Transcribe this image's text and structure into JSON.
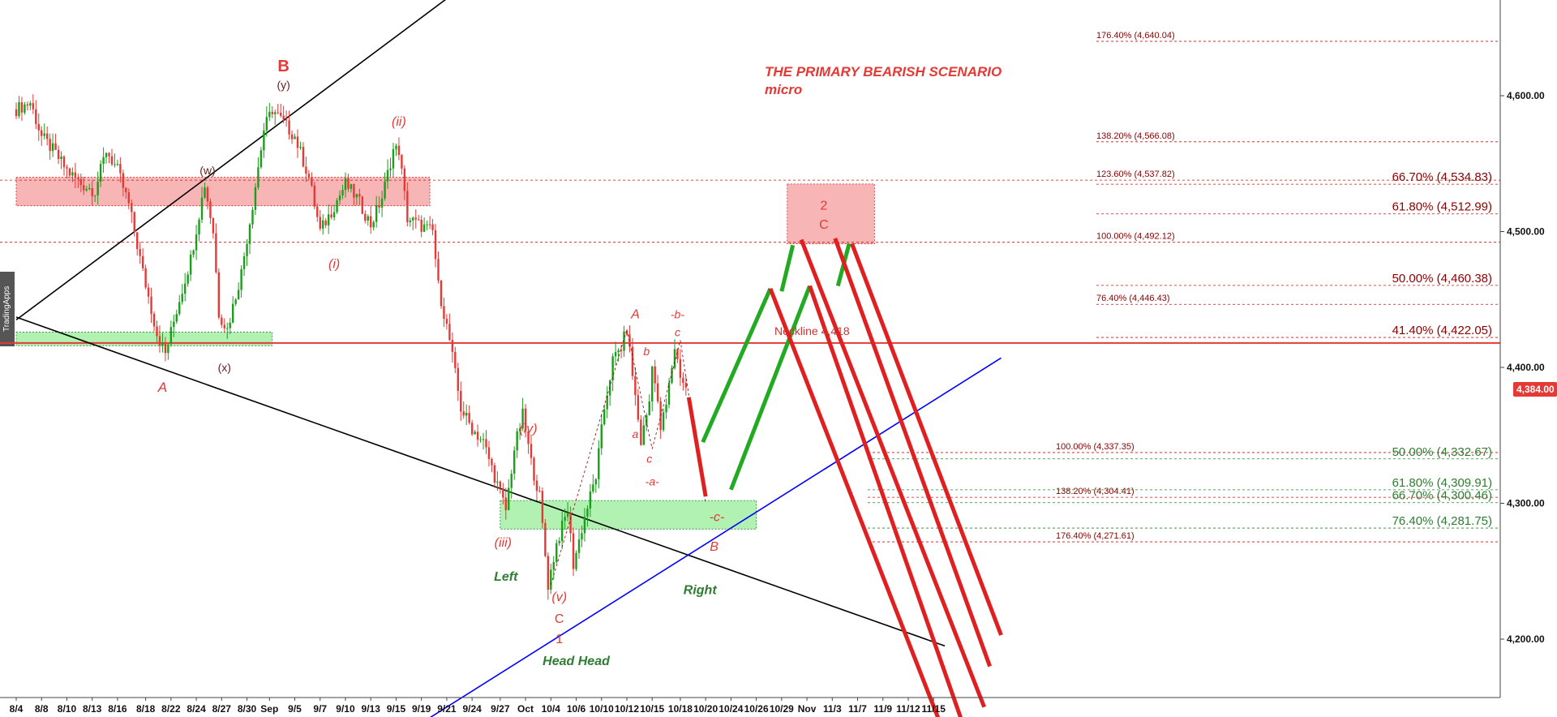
{
  "watermark": "TradingApps",
  "title": "THE PRIMARY BEARISH SCENARIO",
  "subtitle": "micro",
  "neckline_label": "Neckline 4,418",
  "current_price": "4,384.00",
  "colors": {
    "bull": "#1b9e1b",
    "bear": "#e53935",
    "resistance_zone": "#f7a8a8",
    "support_zone": "#a8f0a8",
    "trendline": "#000000",
    "support_line": "#0000ff",
    "projection_up": "#22aa22",
    "projection_down": "#e02020"
  },
  "chart_data": {
    "type": "candlestick",
    "title": "THE PRIMARY BEARISH SCENARIO",
    "subtitle": "micro",
    "ylim": [
      4160,
      4680
    ],
    "y_ticks": [
      "4,600.00",
      "4,500.00",
      "4,400.00",
      "4,300.00",
      "4,200.00"
    ],
    "y_tick_values": [
      4600,
      4500,
      4400,
      4300,
      4200
    ],
    "x_ticks": [
      "8/4",
      "8/8",
      "8/10",
      "8/13",
      "8/16",
      "8/18",
      "8/22",
      "8/24",
      "8/27",
      "8/30",
      "Sep",
      "9/5",
      "9/7",
      "9/10",
      "9/13",
      "9/15",
      "9/19",
      "9/21",
      "9/24",
      "9/27",
      "Oct",
      "10/4",
      "10/6",
      "10/10",
      "10/12",
      "10/15",
      "10/18",
      "10/20",
      "10/24",
      "10/26",
      "10/29",
      "Nov",
      "11/3",
      "11/7",
      "11/9",
      "11/12",
      "11/15"
    ],
    "x_tick_bars": [
      0,
      9,
      18,
      27,
      36,
      46,
      55,
      64,
      73,
      82,
      90,
      99,
      108,
      117,
      126,
      135,
      144,
      153,
      162,
      172,
      181,
      190,
      199,
      208,
      217,
      226,
      236,
      245,
      254,
      263,
      272,
      281,
      290,
      299,
      308,
      317,
      326
    ],
    "last_bar": 238,
    "price_path": [
      [
        0,
        4590
      ],
      [
        5,
        4595
      ],
      [
        9,
        4570
      ],
      [
        13,
        4560
      ],
      [
        18,
        4545
      ],
      [
        23,
        4535
      ],
      [
        28,
        4530
      ],
      [
        32,
        4560
      ],
      [
        36,
        4545
      ],
      [
        40,
        4520
      ],
      [
        45,
        4470
      ],
      [
        50,
        4425
      ],
      [
        53,
        4410
      ],
      [
        58,
        4450
      ],
      [
        62,
        4480
      ],
      [
        67,
        4535
      ],
      [
        70,
        4500
      ],
      [
        72,
        4440
      ],
      [
        75,
        4428
      ],
      [
        80,
        4470
      ],
      [
        84,
        4520
      ],
      [
        88,
        4575
      ],
      [
        91,
        4590
      ],
      [
        95,
        4580
      ],
      [
        99,
        4570
      ],
      [
        104,
        4540
      ],
      [
        108,
        4500
      ],
      [
        112,
        4515
      ],
      [
        117,
        4535
      ],
      [
        121,
        4525
      ],
      [
        126,
        4505
      ],
      [
        130,
        4525
      ],
      [
        134,
        4560
      ],
      [
        136,
        4560
      ],
      [
        139,
        4510
      ],
      [
        143,
        4505
      ],
      [
        148,
        4500
      ],
      [
        150,
        4460
      ],
      [
        154,
        4420
      ],
      [
        158,
        4370
      ],
      [
        162,
        4355
      ],
      [
        166,
        4345
      ],
      [
        170,
        4320
      ],
      [
        174,
        4295
      ],
      [
        177,
        4340
      ],
      [
        180,
        4365
      ],
      [
        183,
        4330
      ],
      [
        186,
        4305
      ],
      [
        189,
        4240
      ],
      [
        192,
        4270
      ],
      [
        196,
        4295
      ],
      [
        198,
        4255
      ],
      [
        202,
        4290
      ],
      [
        206,
        4320
      ],
      [
        209,
        4370
      ],
      [
        212,
        4405
      ],
      [
        215,
        4415
      ],
      [
        217,
        4428
      ],
      [
        219,
        4395
      ],
      [
        222,
        4345
      ],
      [
        225,
        4375
      ],
      [
        226,
        4405
      ],
      [
        229,
        4355
      ],
      [
        231,
        4372
      ],
      [
        234,
        4415
      ],
      [
        236,
        4395
      ],
      [
        238,
        4384
      ]
    ],
    "horizontal_levels": [
      {
        "value": 4418,
        "label": "Neckline 4,418",
        "style": "solid-red"
      },
      {
        "value": 4640.04,
        "label": "176.40% (4,640.04)",
        "side": "mid"
      },
      {
        "value": 4566.08,
        "label": "138.20% (4,566.08)",
        "side": "mid"
      },
      {
        "value": 4537.82,
        "label": "123.60% (4,537.82)",
        "side": "mid"
      },
      {
        "value": 4492.12,
        "label": "100.00% (4,492.12)",
        "side": "mid"
      },
      {
        "value": 4446.43,
        "label": "76.40% (4,446.43)",
        "side": "mid"
      },
      {
        "value": 4534.83,
        "label": "66.70% (4,534.83)",
        "side": "right"
      },
      {
        "value": 4512.99,
        "label": "61.80% (4,512.99)",
        "side": "right"
      },
      {
        "value": 4460.38,
        "label": "50.00% (4,460.38)",
        "side": "right"
      },
      {
        "value": 4422.05,
        "label": "41.40% (4,422.05)",
        "side": "right"
      },
      {
        "value": 4337.35,
        "label": "100.00% (4,337.35)",
        "side": "low"
      },
      {
        "value": 4304.41,
        "label": "138.20% (4,304.41)",
        "side": "low"
      },
      {
        "value": 4271.61,
        "label": "176.40% (4,271.61)",
        "side": "low"
      },
      {
        "value": 4332.67,
        "label": "50.00% (4,332.67)",
        "side": "green"
      },
      {
        "value": 4309.91,
        "label": "61.80% (4,309.91)",
        "side": "green"
      },
      {
        "value": 4300.46,
        "label": "66.70% (4,300.46)",
        "side": "green"
      },
      {
        "value": 4281.75,
        "label": "76.40% (4,281.75)",
        "side": "green"
      }
    ],
    "zones": [
      {
        "name": "resistance-zone",
        "x0": 0,
        "x1": 147,
        "y0": 4540,
        "y1": 4519
      },
      {
        "name": "support-zone-left",
        "x0": 0,
        "x1": 91,
        "y0": 4426,
        "y1": 4416
      },
      {
        "name": "support-zone-right",
        "x0": 172,
        "x1": 263,
        "y0": 4302,
        "y1": 4281
      },
      {
        "name": "target-zone",
        "x0": 274,
        "x1": 305,
        "y0": 4535,
        "y1": 4491
      }
    ],
    "trendlines": [
      {
        "name": "upper-trendline",
        "from": [
          0,
          4435
        ],
        "to": [
          165,
          4690
        ],
        "color": "black"
      },
      {
        "name": "lower-trendline",
        "from": [
          0,
          4437
        ],
        "to": [
          330,
          4195
        ],
        "color": "black"
      },
      {
        "name": "support-trendline",
        "from": [
          130,
          4120
        ],
        "to": [
          350,
          4407
        ],
        "color": "blue"
      }
    ],
    "wave_labels": [
      {
        "text": "B",
        "x": 95,
        "y": 4618,
        "color": "red",
        "size": 20,
        "bold": true
      },
      {
        "text": "(y)",
        "x": 95,
        "y": 4605,
        "color": "maroon",
        "size": 14
      },
      {
        "text": "(w)",
        "x": 68,
        "y": 4542,
        "color": "maroon",
        "size": 14
      },
      {
        "text": "(x)",
        "x": 74,
        "y": 4397,
        "color": "maroon",
        "size": 14
      },
      {
        "text": "A",
        "x": 52,
        "y": 4382,
        "color": "red",
        "size": 17,
        "italic": true
      },
      {
        "text": "(ii)",
        "x": 136,
        "y": 4578,
        "color": "red",
        "size": 16,
        "italic": true
      },
      {
        "text": "(i)",
        "x": 113,
        "y": 4473,
        "color": "red",
        "size": 16,
        "italic": true
      },
      {
        "text": "(iv)",
        "x": 182,
        "y": 4352,
        "color": "red",
        "size": 16,
        "italic": true
      },
      {
        "text": "(iii)",
        "x": 173,
        "y": 4268,
        "color": "red",
        "size": 16,
        "italic": true
      },
      {
        "text": "(v)",
        "x": 193,
        "y": 4228,
        "color": "red",
        "size": 16,
        "italic": true
      },
      {
        "text": "C",
        "x": 193,
        "y": 4212,
        "color": "red",
        "size": 16
      },
      {
        "text": "1",
        "x": 193,
        "y": 4197,
        "color": "red",
        "size": 16
      },
      {
        "text": "Left",
        "x": 174,
        "y": 4243,
        "color": "green",
        "size": 16,
        "italic": true,
        "bold": true
      },
      {
        "text": "Head Head",
        "x": 199,
        "y": 4181,
        "color": "green",
        "size": 16,
        "italic": true,
        "bold": true
      },
      {
        "text": "Right",
        "x": 243,
        "y": 4233,
        "color": "green",
        "size": 16,
        "italic": true,
        "bold": true
      },
      {
        "text": "A",
        "x": 220,
        "y": 4436,
        "color": "red",
        "size": 16,
        "italic": true
      },
      {
        "text": "b",
        "x": 224,
        "y": 4409,
        "color": "red",
        "size": 14,
        "italic": true
      },
      {
        "text": "a",
        "x": 220,
        "y": 4348,
        "color": "red",
        "size": 14,
        "italic": true
      },
      {
        "text": "c",
        "x": 225,
        "y": 4330,
        "color": "red",
        "size": 14,
        "italic": true
      },
      {
        "text": "-a-",
        "x": 226,
        "y": 4313,
        "color": "red",
        "size": 14,
        "italic": true
      },
      {
        "text": "-b-",
        "x": 235,
        "y": 4436,
        "color": "red",
        "size": 14,
        "italic": true
      },
      {
        "text": "c",
        "x": 235,
        "y": 4423,
        "color": "red",
        "size": 14,
        "italic": true
      },
      {
        "text": "-c-",
        "x": 249,
        "y": 4287,
        "color": "red",
        "size": 16,
        "italic": true
      },
      {
        "text": "B",
        "x": 248,
        "y": 4265,
        "color": "red",
        "size": 16,
        "italic": true
      },
      {
        "text": "2",
        "x": 287,
        "y": 4516,
        "color": "red",
        "size": 16
      },
      {
        "text": "C",
        "x": 287,
        "y": 4502,
        "color": "red",
        "size": 16
      }
    ],
    "projections": [
      {
        "color": "red",
        "from": [
          239,
          4378
        ],
        "to": [
          245,
          4305
        ]
      },
      {
        "color": "green",
        "from": [
          244,
          4345
        ],
        "to": [
          268,
          4458
        ]
      },
      {
        "color": "green",
        "from": [
          254,
          4310
        ],
        "to": [
          282,
          4460
        ]
      },
      {
        "color": "green",
        "from": [
          272,
          4456
        ],
        "to": [
          276,
          4490
        ]
      },
      {
        "color": "green",
        "from": [
          292,
          4460
        ],
        "to": [
          296,
          4491
        ]
      },
      {
        "color": "red",
        "from": [
          268,
          4458
        ],
        "to": [
          328,
          4140
        ]
      },
      {
        "color": "red",
        "from": [
          282,
          4460
        ],
        "to": [
          336,
          4140
        ]
      },
      {
        "color": "red",
        "from": [
          279,
          4494
        ],
        "to": [
          344,
          4150
        ]
      },
      {
        "color": "red",
        "from": [
          291,
          4495
        ],
        "to": [
          346,
          4180
        ]
      },
      {
        "color": "red",
        "from": [
          297,
          4491
        ],
        "to": [
          350,
          4203
        ]
      }
    ]
  }
}
